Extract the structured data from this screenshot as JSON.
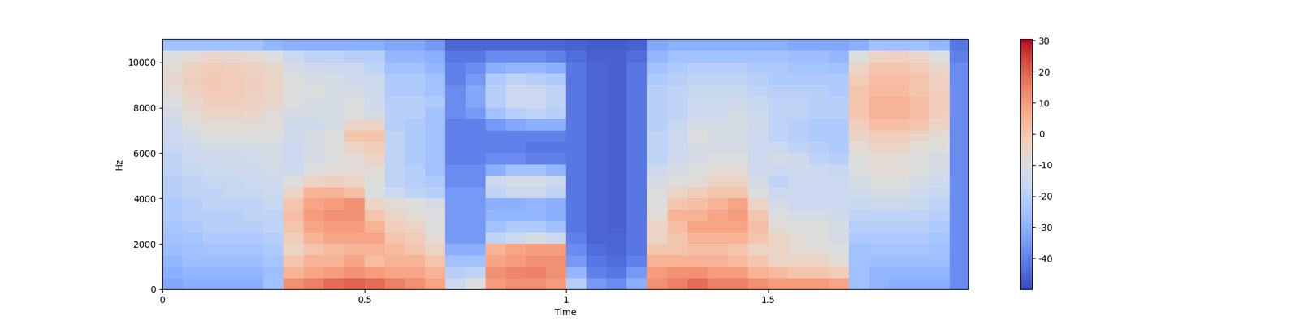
{
  "chart_data": {
    "type": "spectrogram",
    "x_label": "Time",
    "y_label": "Hz",
    "xlim": [
      0,
      1.996
    ],
    "ylim": [
      0,
      11025
    ],
    "xticks": [
      0,
      0.5,
      1,
      1.5
    ],
    "yticks": [
      0,
      2000,
      4000,
      6000,
      8000,
      10000
    ],
    "x_edges": [
      0,
      0.05,
      0.1,
      0.15,
      0.2,
      0.25,
      0.3,
      0.35,
      0.4,
      0.45,
      0.5,
      0.55,
      0.6,
      0.65,
      0.7,
      0.75,
      0.8,
      0.85,
      0.9,
      0.95,
      1.0,
      1.05,
      1.1,
      1.15,
      1.2,
      1.25,
      1.3,
      1.35,
      1.4,
      1.45,
      1.5,
      1.55,
      1.6,
      1.65,
      1.7,
      1.75,
      1.8,
      1.85,
      1.9,
      1.95,
      2.0
    ],
    "y_edges": [
      0,
      500,
      1000,
      1500,
      2000,
      2500,
      3000,
      3500,
      4000,
      4500,
      5000,
      5500,
      6000,
      6500,
      7000,
      7500,
      8000,
      8500,
      9000,
      9500,
      10000,
      10500,
      11025
    ],
    "color_range": [
      -50,
      30.5
    ],
    "color_ticks": [
      -40,
      -30,
      -20,
      -10,
      0,
      10,
      20,
      30
    ],
    "cells_by_time": [
      [
        -32,
        -30,
        -28,
        -26,
        -25,
        -24,
        -22,
        -22,
        -20,
        -20,
        -18,
        -18,
        -16,
        -15,
        -14,
        -12,
        -10,
        -8,
        -6,
        -8,
        -10,
        -25
      ],
      [
        -30,
        -28,
        -26,
        -25,
        -24,
        -22,
        -20,
        -20,
        -18,
        -18,
        -16,
        -15,
        -14,
        -12,
        -10,
        -8,
        -6,
        -4,
        -3,
        -4,
        -8,
        -25
      ],
      [
        -30,
        -28,
        -26,
        -24,
        -22,
        -20,
        -20,
        -18,
        -18,
        -16,
        -15,
        -14,
        -12,
        -10,
        -8,
        -5,
        -3,
        -2,
        -1,
        -2,
        -6,
        -25
      ],
      [
        -30,
        -28,
        -26,
        -24,
        -22,
        -20,
        -20,
        -18,
        -16,
        -16,
        -14,
        -14,
        -12,
        -10,
        -8,
        -5,
        -3,
        -2,
        -2,
        -3,
        -6,
        -25
      ],
      [
        -30,
        -28,
        -26,
        -24,
        -22,
        -20,
        -18,
        -18,
        -16,
        -15,
        -14,
        -13,
        -12,
        -10,
        -8,
        -6,
        -4,
        -3,
        -3,
        -4,
        -8,
        -25
      ],
      [
        -25,
        -26,
        -24,
        -22,
        -20,
        -18,
        -18,
        -16,
        -15,
        -14,
        -13,
        -12,
        -12,
        -10,
        -9,
        -8,
        -6,
        -5,
        -5,
        -6,
        -10,
        -28
      ],
      [
        12,
        5,
        0,
        -5,
        -2,
        0,
        2,
        0,
        -5,
        -10,
        -14,
        -15,
        -15,
        -14,
        -14,
        -12,
        -10,
        -10,
        -10,
        -12,
        -15,
        -30
      ],
      [
        15,
        8,
        5,
        0,
        5,
        8,
        10,
        8,
        5,
        -5,
        -10,
        -12,
        -12,
        -12,
        -14,
        -12,
        -12,
        -10,
        -12,
        -14,
        -18,
        -30
      ],
      [
        18,
        10,
        5,
        3,
        8,
        10,
        12,
        10,
        5,
        -3,
        -8,
        -10,
        -10,
        -10,
        -12,
        -12,
        -12,
        -12,
        -12,
        -15,
        -18,
        -30
      ],
      [
        20,
        12,
        8,
        5,
        8,
        10,
        12,
        12,
        2,
        -5,
        -8,
        -8,
        -5,
        0,
        -5,
        -10,
        -10,
        -12,
        -14,
        -15,
        -20,
        -30
      ],
      [
        18,
        10,
        2,
        5,
        8,
        5,
        0,
        -5,
        -10,
        -10,
        -8,
        -5,
        -2,
        0,
        -5,
        -12,
        -14,
        -15,
        -15,
        -18,
        -20,
        -30
      ],
      [
        15,
        8,
        5,
        3,
        0,
        -3,
        -5,
        -8,
        -15,
        -18,
        -18,
        -18,
        -18,
        -18,
        -20,
        -20,
        -20,
        -22,
        -22,
        -25,
        -28,
        -32
      ],
      [
        12,
        8,
        5,
        0,
        -2,
        -5,
        -8,
        -10,
        -18,
        -20,
        -20,
        -22,
        -22,
        -22,
        -22,
        -20,
        -20,
        -22,
        -22,
        -25,
        -28,
        -32
      ],
      [
        8,
        5,
        0,
        -5,
        -8,
        -10,
        -10,
        -12,
        -20,
        -22,
        -25,
        -25,
        -25,
        -25,
        -25,
        -25,
        -22,
        -25,
        -25,
        -28,
        -30,
        -35
      ],
      [
        -15,
        -20,
        -25,
        -30,
        -35,
        -35,
        -35,
        -35,
        -35,
        -38,
        -38,
        -40,
        -40,
        -40,
        -40,
        -38,
        -38,
        -38,
        -40,
        -40,
        -42,
        -45
      ],
      [
        -10,
        -18,
        -25,
        -30,
        -35,
        -35,
        -35,
        -35,
        -35,
        -38,
        -38,
        -40,
        -40,
        -40,
        -40,
        -35,
        -32,
        -32,
        -35,
        -38,
        -42,
        -45
      ],
      [
        10,
        12,
        8,
        5,
        -18,
        -25,
        -28,
        -30,
        -18,
        -15,
        -30,
        -38,
        -40,
        -40,
        -35,
        -25,
        -20,
        -20,
        -22,
        -30,
        -38,
        -45
      ],
      [
        12,
        14,
        10,
        8,
        -15,
        -22,
        -28,
        -30,
        -15,
        -12,
        -25,
        -38,
        -40,
        -40,
        -32,
        -20,
        -15,
        -15,
        -18,
        -28,
        -38,
        -45
      ],
      [
        12,
        15,
        12,
        10,
        -12,
        -22,
        -28,
        -28,
        -15,
        -12,
        -25,
        -40,
        -42,
        -40,
        -30,
        -18,
        -15,
        -15,
        -20,
        -28,
        -38,
        -45
      ],
      [
        10,
        12,
        12,
        10,
        -15,
        -25,
        -30,
        -30,
        -18,
        -15,
        -28,
        -40,
        -42,
        -40,
        -30,
        -20,
        -18,
        -18,
        -22,
        -30,
        -40,
        -45
      ],
      [
        -20,
        -28,
        -35,
        -38,
        -40,
        -42,
        -42,
        -42,
        -42,
        -42,
        -42,
        -42,
        -42,
        -42,
        -42,
        -42,
        -42,
        -42,
        -42,
        -42,
        -44,
        -46
      ],
      [
        -35,
        -40,
        -42,
        -44,
        -45,
        -45,
        -45,
        -45,
        -45,
        -45,
        -45,
        -45,
        -45,
        -45,
        -45,
        -45,
        -45,
        -45,
        -45,
        -45,
        -46,
        -47
      ],
      [
        -38,
        -42,
        -44,
        -45,
        -45,
        -46,
        -46,
        -46,
        -46,
        -46,
        -46,
        -46,
        -46,
        -46,
        -46,
        -46,
        -46,
        -46,
        -46,
        -46,
        -46,
        -47
      ],
      [
        -30,
        -35,
        -40,
        -42,
        -42,
        -42,
        -42,
        -42,
        -42,
        -42,
        -42,
        -42,
        -42,
        -42,
        -42,
        -42,
        -42,
        -42,
        -42,
        -42,
        -44,
        -46
      ],
      [
        12,
        10,
        5,
        0,
        -5,
        -5,
        -8,
        -10,
        -10,
        -12,
        -15,
        -18,
        -18,
        -18,
        -20,
        -20,
        -20,
        -20,
        -22,
        -25,
        -28,
        -32
      ],
      [
        15,
        12,
        5,
        0,
        0,
        2,
        5,
        0,
        -5,
        -10,
        -12,
        -14,
        -15,
        -15,
        -16,
        -18,
        -18,
        -18,
        -20,
        -22,
        -25,
        -30
      ],
      [
        18,
        12,
        5,
        2,
        5,
        8,
        5,
        2,
        -2,
        -8,
        -10,
        -12,
        -12,
        -10,
        -12,
        -14,
        -15,
        -16,
        -18,
        -20,
        -25,
        -30
      ],
      [
        15,
        10,
        5,
        2,
        5,
        8,
        8,
        5,
        0,
        -5,
        -8,
        -10,
        -12,
        -12,
        -12,
        -14,
        -15,
        -16,
        -18,
        -20,
        -25,
        -30
      ],
      [
        15,
        10,
        3,
        0,
        5,
        8,
        10,
        8,
        0,
        -5,
        -8,
        -10,
        -12,
        -12,
        -12,
        -12,
        -14,
        -16,
        -18,
        -20,
        -25,
        -30
      ],
      [
        12,
        5,
        0,
        -5,
        0,
        2,
        0,
        -5,
        -10,
        -12,
        -14,
        -15,
        -15,
        -15,
        -14,
        -15,
        -16,
        -18,
        -20,
        -22,
        -25,
        -30
      ],
      [
        10,
        3,
        -5,
        -5,
        -5,
        -8,
        -10,
        -12,
        -15,
        -18,
        -15,
        -12,
        -15,
        -18,
        -18,
        -18,
        -18,
        -20,
        -22,
        -22,
        -25,
        -30
      ],
      [
        10,
        0,
        -5,
        -8,
        -8,
        -10,
        -12,
        -15,
        -15,
        -15,
        -14,
        -14,
        -18,
        -20,
        -20,
        -18,
        -18,
        -20,
        -22,
        -24,
        -26,
        -32
      ],
      [
        10,
        0,
        -5,
        -8,
        -10,
        -10,
        -12,
        -15,
        -15,
        -15,
        -15,
        -18,
        -20,
        -22,
        -22,
        -20,
        -20,
        -20,
        -22,
        -24,
        -26,
        -32
      ],
      [
        8,
        -2,
        -8,
        -10,
        -12,
        -12,
        -14,
        -15,
        -15,
        -15,
        -16,
        -20,
        -22,
        -22,
        -22,
        -20,
        -20,
        -22,
        -22,
        -25,
        -28,
        -32
      ],
      [
        -25,
        -25,
        -25,
        -25,
        -22,
        -20,
        -18,
        -16,
        -14,
        -12,
        -10,
        -10,
        -8,
        -5,
        -3,
        0,
        0,
        0,
        -2,
        -5,
        -10,
        -30
      ],
      [
        -28,
        -28,
        -26,
        -24,
        -22,
        -20,
        -18,
        -15,
        -12,
        -10,
        -8,
        -8,
        -5,
        -2,
        2,
        5,
        5,
        3,
        2,
        0,
        -5,
        -25
      ],
      [
        -30,
        -28,
        -26,
        -24,
        -22,
        -20,
        -18,
        -15,
        -12,
        -10,
        -8,
        -8,
        -5,
        -2,
        2,
        5,
        5,
        3,
        2,
        0,
        -4,
        -25
      ],
      [
        -30,
        -28,
        -26,
        -24,
        -22,
        -20,
        -18,
        -16,
        -14,
        -12,
        -10,
        -10,
        -8,
        -5,
        0,
        2,
        2,
        0,
        0,
        -2,
        -6,
        -25
      ],
      [
        -30,
        -28,
        -26,
        -25,
        -24,
        -22,
        -20,
        -18,
        -16,
        -14,
        -12,
        -12,
        -10,
        -8,
        -5,
        -3,
        -2,
        -3,
        -4,
        -6,
        -10,
        -28
      ],
      [
        -38,
        -38,
        -38,
        -38,
        -38,
        -38,
        -38,
        -38,
        -38,
        -38,
        -38,
        -38,
        -38,
        -38,
        -38,
        -38,
        -38,
        -38,
        -38,
        -38,
        -40,
        -42
      ]
    ]
  }
}
